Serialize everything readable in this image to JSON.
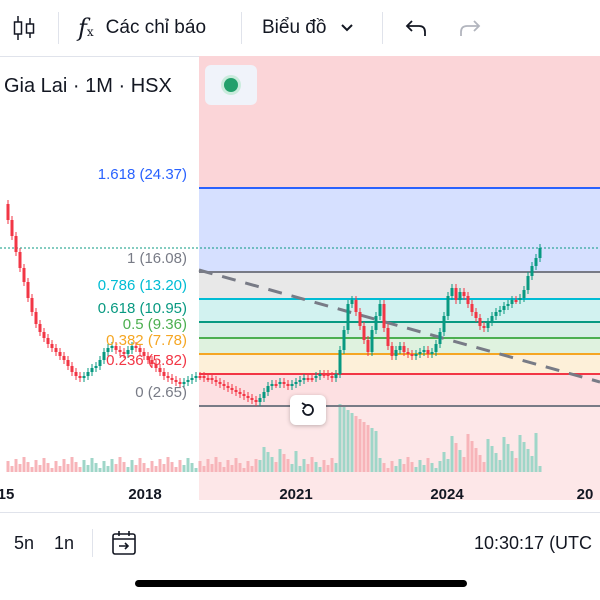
{
  "toolbar": {
    "indicators_label": "Các chỉ báo",
    "chart_type_label": "Biểu đồ",
    "icons": [
      "candles-icon",
      "function-icon",
      "chevron-down-icon",
      "undo-icon",
      "redo-icon"
    ]
  },
  "symbol": {
    "title": "Gia Lai · 1M · HSX",
    "status_color": "#22a06b"
  },
  "fib_levels": [
    {
      "label": "1.618 (24.37)",
      "value": 24.37,
      "color": "#2962ff"
    },
    {
      "label": "1 (16.08)",
      "value": 16.08,
      "color": "#787b86"
    },
    {
      "label": "0.786 (13.20)",
      "value": 13.2,
      "color": "#00bcd4"
    },
    {
      "label": "0.618 (10.95)",
      "value": 10.95,
      "color": "#089981"
    },
    {
      "label": "0.5 (9.36)",
      "value": 9.36,
      "color": "#4caf50"
    },
    {
      "label": "0.382 (7.78)",
      "value": 7.78,
      "color": "#f5a623"
    },
    {
      "label": "0.236 (5.82)",
      "value": 5.82,
      "color": "#f23645"
    },
    {
      "label": "0 (2.65)",
      "value": 2.65,
      "color": "#787b86"
    }
  ],
  "x_axis": {
    "ticks": [
      "15",
      "2018",
      "2021",
      "2024",
      "20"
    ]
  },
  "bottom": {
    "range_5y": "5n",
    "range_1y": "1n",
    "time": "10:30:17 (UTC"
  }
}
